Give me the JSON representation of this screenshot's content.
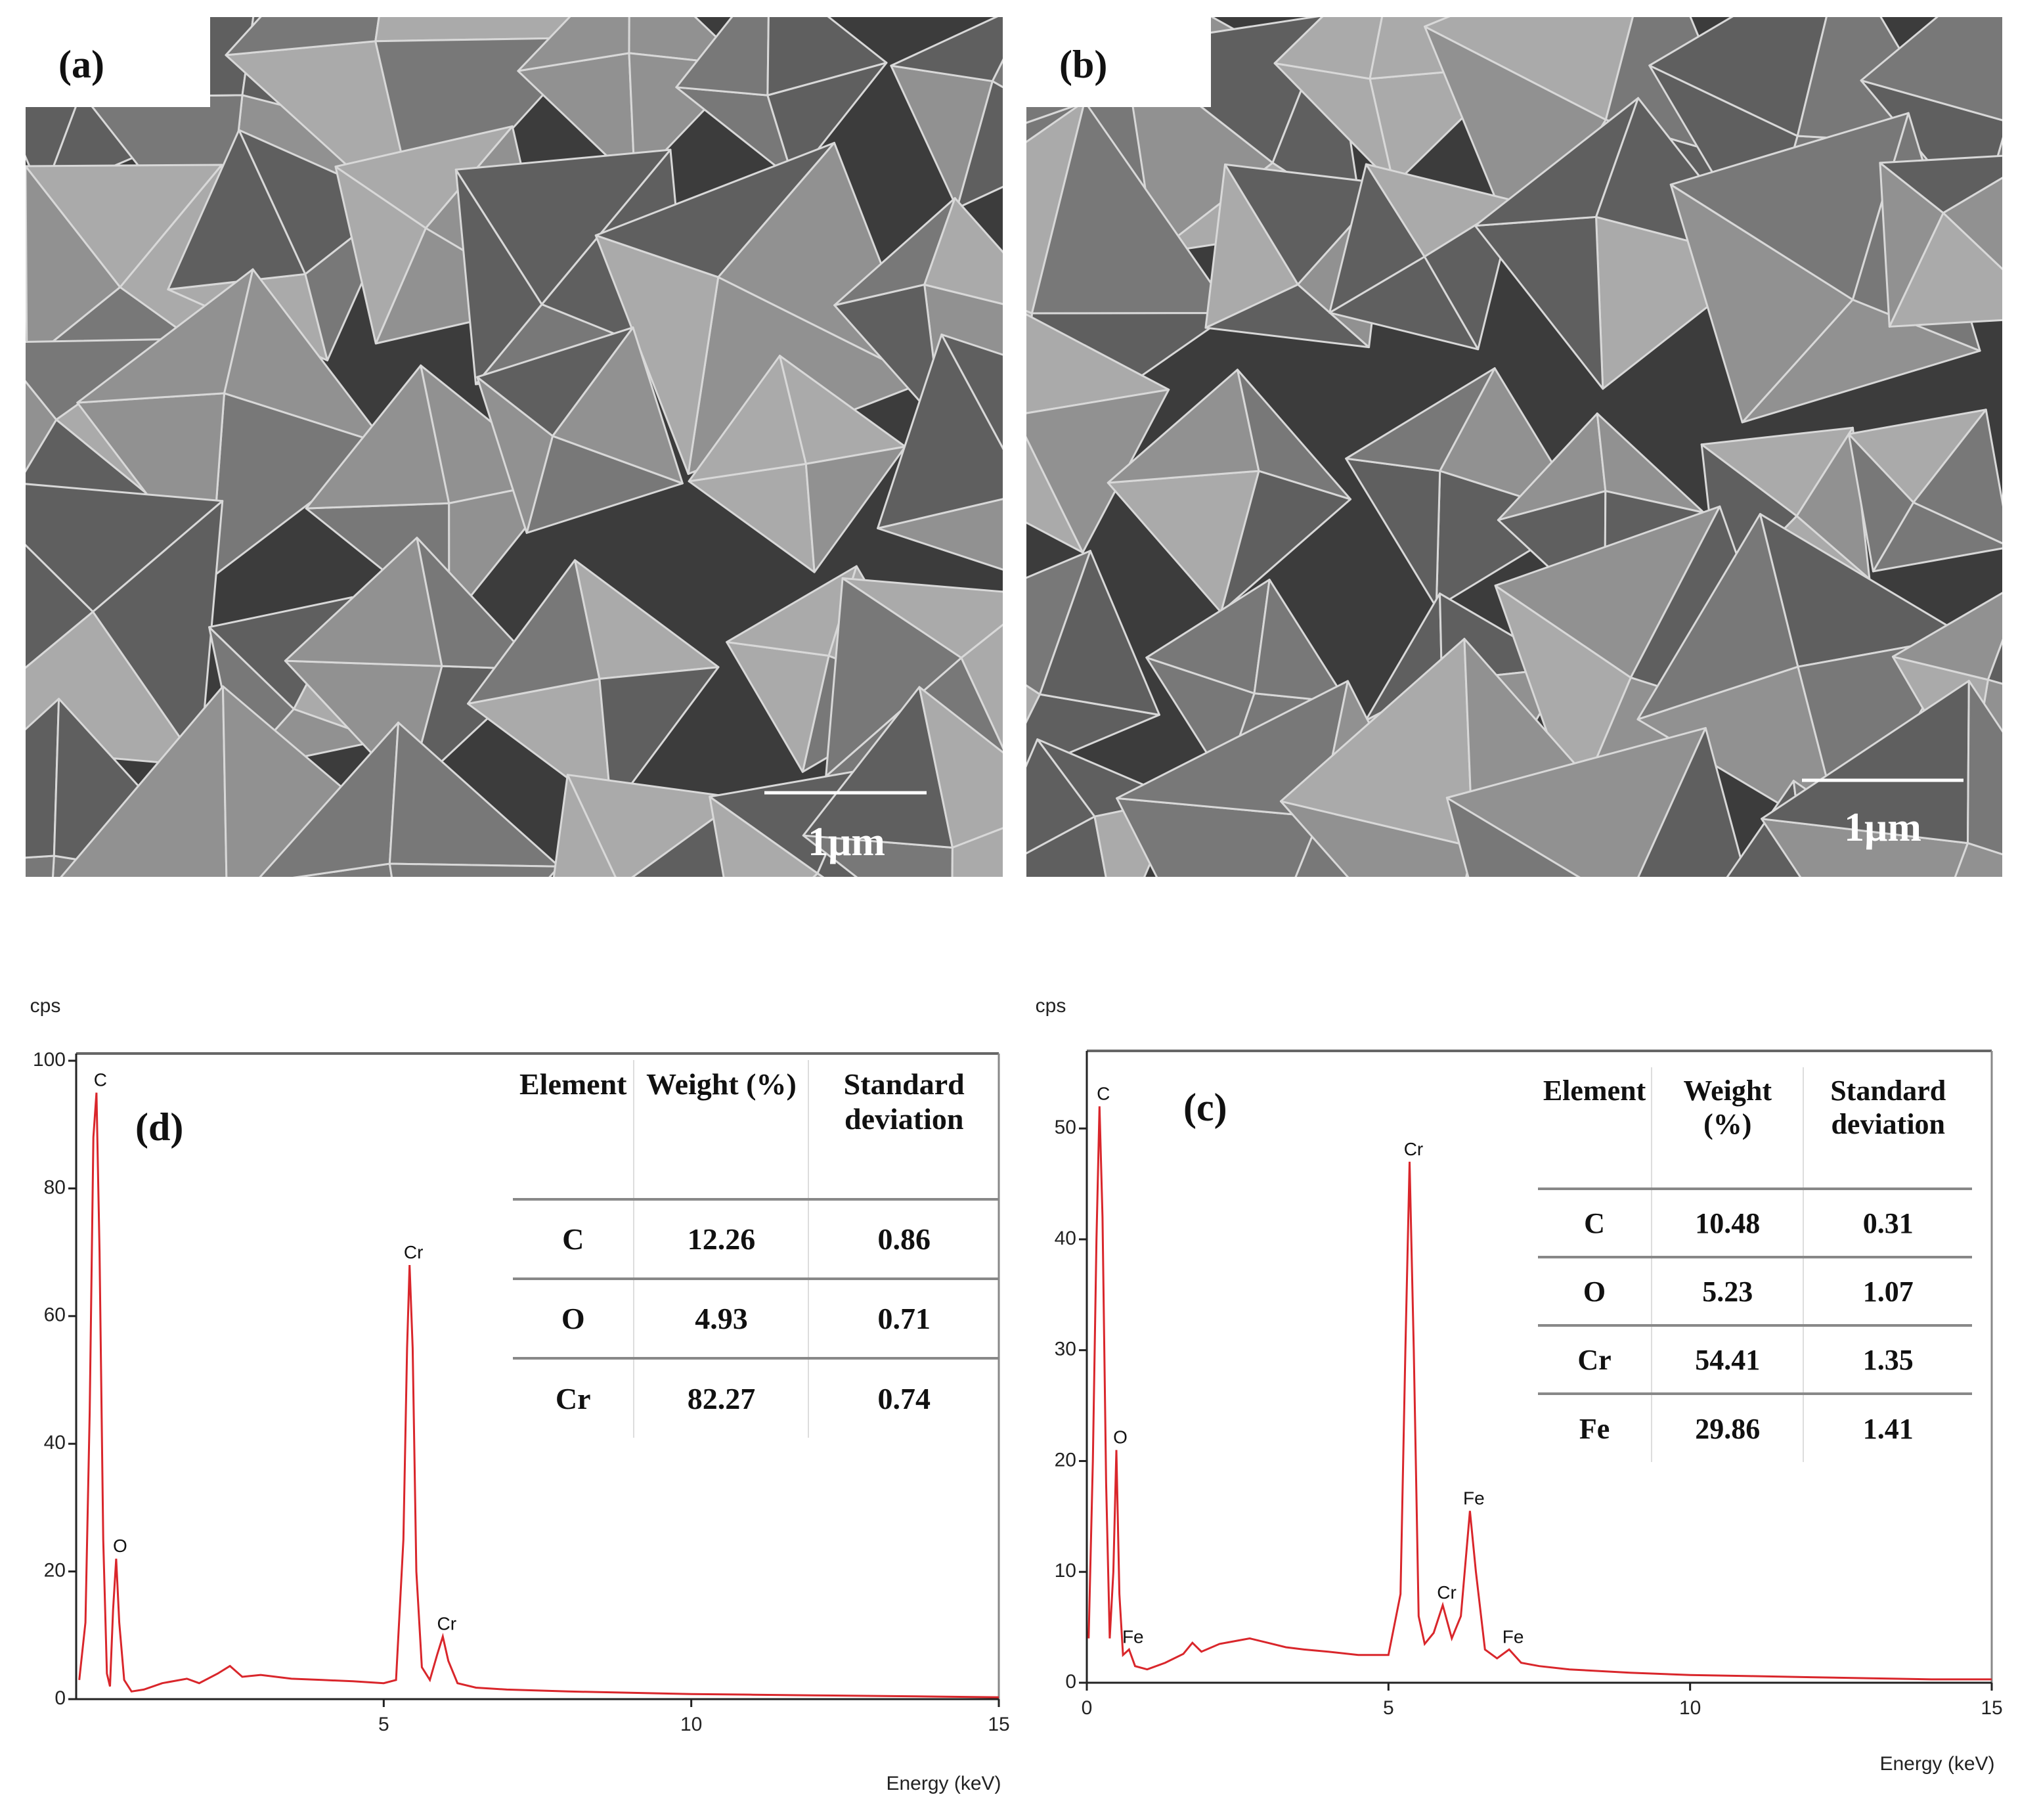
{
  "images": [
    {
      "label": "(a)",
      "scale_bar": "1μm"
    },
    {
      "label": "(b)",
      "scale_bar": "1μm"
    }
  ],
  "chart_data": [
    {
      "type": "line",
      "panel_label": "(d)",
      "y_label": "cps",
      "x_label": "Energy (keV)",
      "x": [
        0.05,
        0.15,
        0.22,
        0.28,
        0.33,
        0.38,
        0.44,
        0.5,
        0.55,
        0.6,
        0.65,
        0.7,
        0.78,
        0.9,
        1.1,
        1.4,
        1.8,
        2.0,
        2.3,
        2.5,
        2.7,
        3.0,
        3.5,
        4.0,
        4.5,
        5.0,
        5.2,
        5.32,
        5.38,
        5.42,
        5.47,
        5.53,
        5.62,
        5.75,
        5.87,
        5.96,
        6.05,
        6.2,
        6.5,
        7.0,
        8.0,
        9.0,
        10.0,
        11.0,
        12.0,
        13.0,
        14.0,
        15.0
      ],
      "series": [
        {
          "color": "#d9262b",
          "values": [
            3,
            12,
            45,
            88,
            95,
            70,
            25,
            4,
            2,
            14,
            22,
            12,
            3,
            1.2,
            1.5,
            2.5,
            3.2,
            2.5,
            4,
            5.2,
            3.5,
            3.8,
            3.2,
            3,
            2.8,
            2.5,
            3,
            25,
            55,
            68,
            55,
            20,
            5,
            3,
            7,
            9.8,
            6,
            2.5,
            1.8,
            1.5,
            1.2,
            1,
            0.8,
            0.7,
            0.6,
            0.5,
            0.4,
            0.3
          ]
        }
      ],
      "xlim": [
        0,
        15
      ],
      "ylim": [
        0,
        100
      ],
      "xticks": [
        5,
        10,
        15
      ],
      "yticks": [
        0,
        20,
        40,
        60,
        80,
        100
      ],
      "peak_labels": [
        {
          "label": "C",
          "x": 0.33,
          "y": 95
        },
        {
          "label": "O",
          "x": 0.65,
          "y": 22
        },
        {
          "label": "Cr",
          "x": 5.42,
          "y": 68
        },
        {
          "label": "Cr",
          "x": 5.96,
          "y": 9.8
        }
      ],
      "table": {
        "columns": [
          "Element",
          "Weight (%)",
          "Standard deviation"
        ],
        "rows": [
          [
            "C",
            12.26,
            0.86
          ],
          [
            "O",
            4.93,
            0.71
          ],
          [
            "Cr",
            82.27,
            0.74
          ]
        ]
      }
    },
    {
      "type": "line",
      "panel_label": "(c)",
      "y_label": "cps",
      "x_label": "Energy (keV)",
      "x": [
        0.03,
        0.1,
        0.16,
        0.21,
        0.26,
        0.32,
        0.38,
        0.44,
        0.49,
        0.54,
        0.6,
        0.7,
        0.8,
        1.0,
        1.3,
        1.6,
        1.75,
        1.9,
        2.2,
        2.5,
        2.7,
        3.0,
        3.3,
        3.6,
        4.0,
        4.5,
        5.0,
        5.2,
        5.28,
        5.35,
        5.42,
        5.5,
        5.6,
        5.75,
        5.9,
        6.05,
        6.2,
        6.35,
        6.45,
        6.6,
        6.8,
        7.0,
        7.2,
        7.5,
        8.0,
        9.0,
        10.0,
        11.0,
        12.0,
        13.0,
        14.0,
        15.0
      ],
      "series": [
        {
          "color": "#d9262b",
          "values": [
            4,
            20,
            40,
            52,
            42,
            18,
            4,
            10,
            21,
            8,
            2.5,
            3,
            1.5,
            1.2,
            1.8,
            2.6,
            3.6,
            2.8,
            3.5,
            3.8,
            4,
            3.6,
            3.2,
            3,
            2.8,
            2.5,
            2.5,
            8,
            30,
            47,
            30,
            6,
            3.5,
            4.5,
            7,
            4,
            6,
            15.5,
            10,
            3,
            2.2,
            3,
            1.8,
            1.5,
            1.2,
            0.9,
            0.7,
            0.6,
            0.5,
            0.4,
            0.3,
            0.3
          ]
        }
      ],
      "xlim": [
        0,
        15
      ],
      "ylim": [
        0,
        57
      ],
      "xticks": [
        0,
        5,
        10,
        15
      ],
      "yticks": [
        0,
        10,
        20,
        30,
        40,
        50
      ],
      "peak_labels": [
        {
          "label": "C",
          "x": 0.21,
          "y": 52
        },
        {
          "label": "O",
          "x": 0.49,
          "y": 21
        },
        {
          "label": "Fe",
          "x": 0.7,
          "y": 3
        },
        {
          "label": "Cr",
          "x": 5.35,
          "y": 47
        },
        {
          "label": "Cr",
          "x": 5.9,
          "y": 7
        },
        {
          "label": "Fe",
          "x": 6.35,
          "y": 15.5
        },
        {
          "label": "Fe",
          "x": 7.0,
          "y": 3
        }
      ],
      "table": {
        "columns": [
          "Element",
          "Weight (%)",
          "Standard deviation"
        ],
        "rows": [
          [
            "C",
            10.48,
            0.31
          ],
          [
            "O",
            5.23,
            1.07
          ],
          [
            "Cr",
            54.41,
            1.35
          ],
          [
            "Fe",
            29.86,
            1.41
          ]
        ]
      }
    }
  ]
}
